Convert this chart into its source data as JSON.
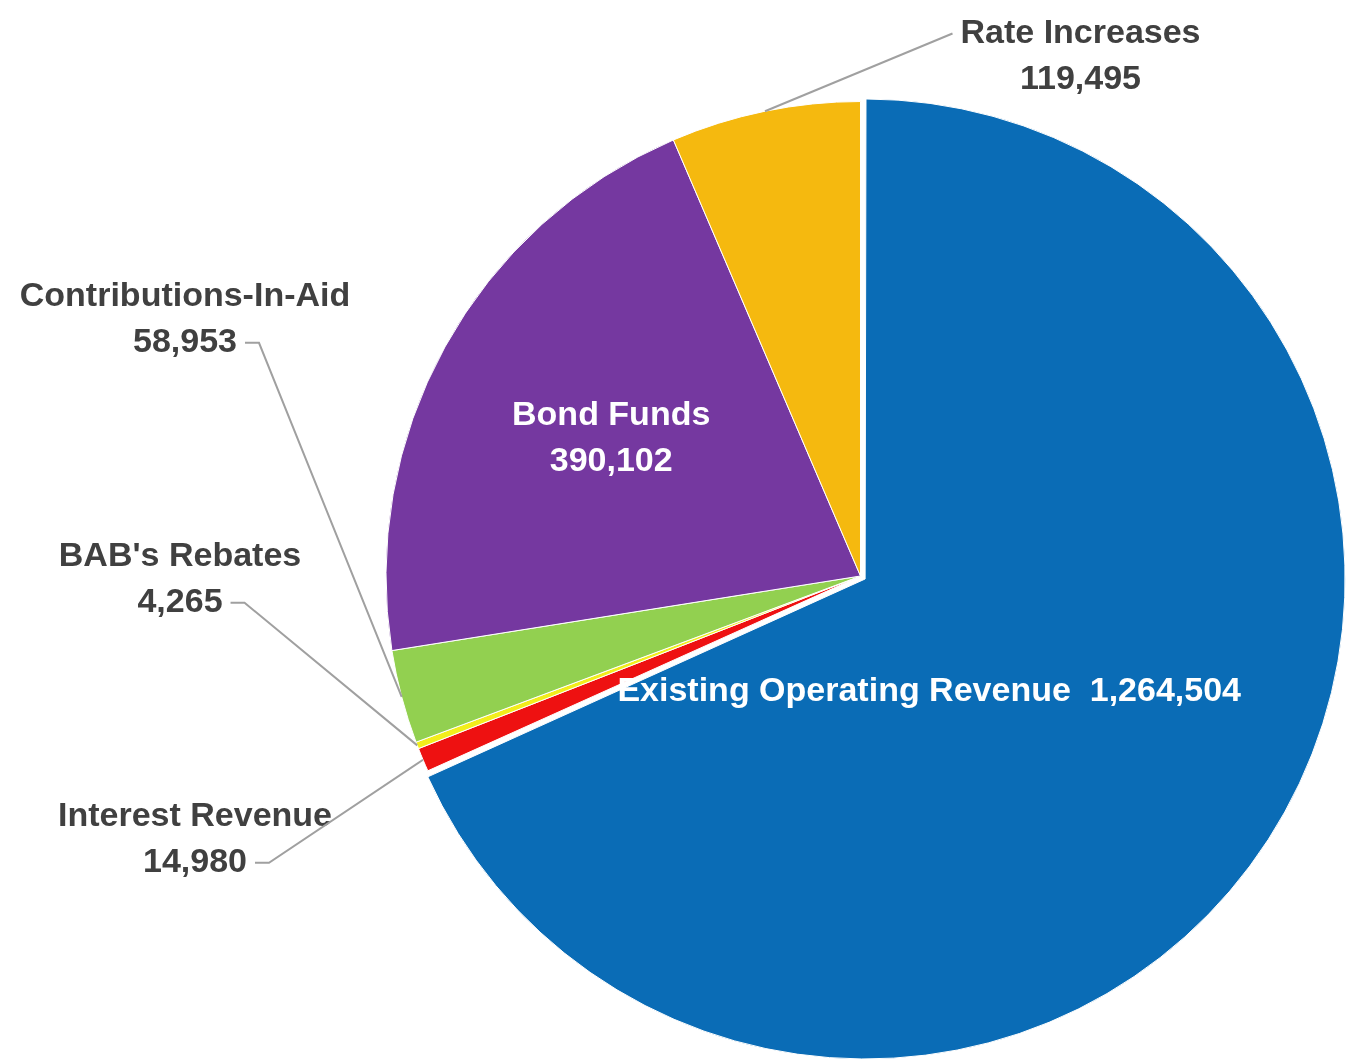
{
  "chart_data": {
    "type": "pie",
    "categories": [
      "Existing Operating Revenue",
      "Interest Revenue",
      "BAB's Rebates",
      "Contributions-In-Aid",
      "Bond Funds",
      "Rate Increases"
    ],
    "values": [
      1264504,
      14980,
      4265,
      58953,
      390102,
      119495
    ],
    "colors": [
      "#0a6cb6",
      "#ee1111",
      "#f2ee1c",
      "#92d050",
      "#7538a0",
      "#f5b90f"
    ],
    "value_labels": [
      "1,264,504",
      "14,980",
      "4,265",
      "58,953",
      "390,102",
      "119,495"
    ],
    "legend": false
  }
}
